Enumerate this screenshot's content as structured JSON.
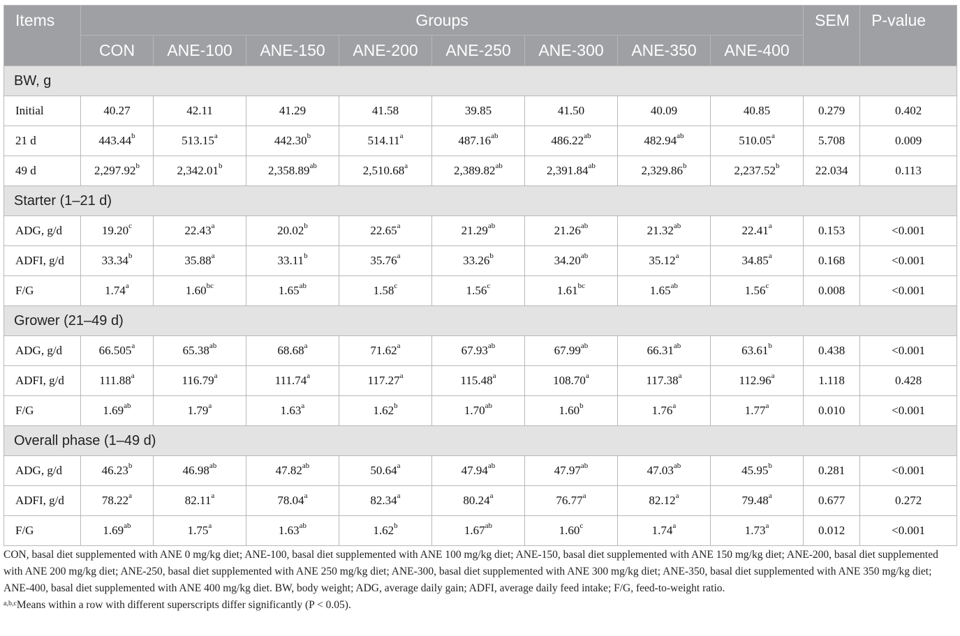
{
  "header": {
    "items": "Items",
    "groups": "Groups",
    "sem": "SEM",
    "pvalue": "P-value",
    "group_names": [
      "CON",
      "ANE-100",
      "ANE-150",
      "ANE-200",
      "ANE-250",
      "ANE-300",
      "ANE-350",
      "ANE-400"
    ]
  },
  "sections": [
    {
      "title": "BW, g",
      "rows": [
        {
          "label": "Initial",
          "values": [
            [
              "40.27",
              ""
            ],
            [
              "42.11",
              ""
            ],
            [
              "41.29",
              ""
            ],
            [
              "41.58",
              ""
            ],
            [
              "39.85",
              ""
            ],
            [
              "41.50",
              ""
            ],
            [
              "40.09",
              ""
            ],
            [
              "40.85",
              ""
            ]
          ],
          "sem": "0.279",
          "p": "0.402"
        },
        {
          "label": "21 d",
          "values": [
            [
              "443.44",
              "b"
            ],
            [
              "513.15",
              "a"
            ],
            [
              "442.30",
              "b"
            ],
            [
              "514.11",
              "a"
            ],
            [
              "487.16",
              "ab"
            ],
            [
              "486.22",
              "ab"
            ],
            [
              "482.94",
              "ab"
            ],
            [
              "510.05",
              "a"
            ]
          ],
          "sem": "5.708",
          "p": "0.009"
        },
        {
          "label": "49 d",
          "values": [
            [
              "2,297.92",
              "b"
            ],
            [
              "2,342.01",
              "b"
            ],
            [
              "2,358.89",
              "ab"
            ],
            [
              "2,510.68",
              "a"
            ],
            [
              "2,389.82",
              "ab"
            ],
            [
              "2,391.84",
              "ab"
            ],
            [
              "2,329.86",
              "b"
            ],
            [
              "2,237.52",
              "b"
            ]
          ],
          "sem": "22.034",
          "p": "0.113"
        }
      ]
    },
    {
      "title": "Starter (1–21 d)",
      "rows": [
        {
          "label": "ADG, g/d",
          "values": [
            [
              "19.20",
              "c"
            ],
            [
              "22.43",
              "a"
            ],
            [
              "20.02",
              "b"
            ],
            [
              "22.65",
              "a"
            ],
            [
              "21.29",
              "ab"
            ],
            [
              "21.26",
              "ab"
            ],
            [
              "21.32",
              "ab"
            ],
            [
              "22.41",
              "a"
            ]
          ],
          "sem": "0.153",
          "p": "<0.001"
        },
        {
          "label": "ADFI, g/d",
          "values": [
            [
              "33.34",
              "b"
            ],
            [
              "35.88",
              "a"
            ],
            [
              "33.11",
              "b"
            ],
            [
              "35.76",
              "a"
            ],
            [
              "33.26",
              "b"
            ],
            [
              "34.20",
              "ab"
            ],
            [
              "35.12",
              "a"
            ],
            [
              "34.85",
              "a"
            ]
          ],
          "sem": "0.168",
          "p": "<0.001"
        },
        {
          "label": "F/G",
          "values": [
            [
              "1.74",
              "a"
            ],
            [
              "1.60",
              "bc"
            ],
            [
              "1.65",
              "ab"
            ],
            [
              "1.58",
              "c"
            ],
            [
              "1.56",
              "c"
            ],
            [
              "1.61",
              "bc"
            ],
            [
              "1.65",
              "ab"
            ],
            [
              "1.56",
              "c"
            ]
          ],
          "sem": "0.008",
          "p": "<0.001"
        }
      ]
    },
    {
      "title": "Grower (21–49 d)",
      "rows": [
        {
          "label": "ADG, g/d",
          "values": [
            [
              "66.505",
              "a"
            ],
            [
              "65.38",
              "ab"
            ],
            [
              "68.68",
              "a"
            ],
            [
              "71.62",
              "a"
            ],
            [
              "67.93",
              "ab"
            ],
            [
              "67.99",
              "ab"
            ],
            [
              "66.31",
              "ab"
            ],
            [
              "63.61",
              "b"
            ]
          ],
          "sem": "0.438",
          "p": "<0.001"
        },
        {
          "label": "ADFI, g/d",
          "values": [
            [
              "111.88",
              "a"
            ],
            [
              "116.79",
              "a"
            ],
            [
              "111.74",
              "a"
            ],
            [
              "117.27",
              "a"
            ],
            [
              "115.48",
              "a"
            ],
            [
              "108.70",
              "a"
            ],
            [
              "117.38",
              "a"
            ],
            [
              "112.96",
              "a"
            ]
          ],
          "sem": "1.118",
          "p": "0.428"
        },
        {
          "label": "F/G",
          "values": [
            [
              "1.69",
              "ab"
            ],
            [
              "1.79",
              "a"
            ],
            [
              "1.63",
              "a"
            ],
            [
              "1.62",
              "b"
            ],
            [
              "1.70",
              "ab"
            ],
            [
              "1.60",
              "b"
            ],
            [
              "1.76",
              "a"
            ],
            [
              "1.77",
              "a"
            ]
          ],
          "sem": "0.010",
          "p": "<0.001"
        }
      ]
    },
    {
      "title": "Overall phase (1–49 d)",
      "rows": [
        {
          "label": "ADG, g/d",
          "values": [
            [
              "46.23",
              "b"
            ],
            [
              "46.98",
              "ab"
            ],
            [
              "47.82",
              "ab"
            ],
            [
              "50.64",
              "a"
            ],
            [
              "47.94",
              "ab"
            ],
            [
              "47.97",
              "ab"
            ],
            [
              "47.03",
              "ab"
            ],
            [
              "45.95",
              "b"
            ]
          ],
          "sem": "0.281",
          "p": "<0.001"
        },
        {
          "label": "ADFI, g/d",
          "values": [
            [
              "78.22",
              "a"
            ],
            [
              "82.11",
              "a"
            ],
            [
              "78.04",
              "a"
            ],
            [
              "82.34",
              "a"
            ],
            [
              "80.24",
              "a"
            ],
            [
              "76.77",
              "a"
            ],
            [
              "82.12",
              "a"
            ],
            [
              "79.48",
              "a"
            ]
          ],
          "sem": "0.677",
          "p": "0.272"
        },
        {
          "label": "F/G",
          "values": [
            [
              "1.69",
              "ab"
            ],
            [
              "1.75",
              "a"
            ],
            [
              "1.63",
              "ab"
            ],
            [
              "1.62",
              "b"
            ],
            [
              "1.67",
              "ab"
            ],
            [
              "1.60",
              "c"
            ],
            [
              "1.74",
              "a"
            ],
            [
              "1.73",
              "a"
            ]
          ],
          "sem": "0.012",
          "p": "<0.001"
        }
      ]
    }
  ],
  "footnote": {
    "abbreviations": "CON, basal diet supplemented with ANE 0 mg/kg diet; ANE-100, basal diet supplemented with ANE 100 mg/kg diet; ANE-150, basal diet supplemented with ANE 150 mg/kg diet; ANE-200, basal diet supplemented with ANE 200 mg/kg diet; ANE-250, basal diet supplemented with ANE 250 mg/kg diet; ANE-300, basal diet supplemented with ANE 300 mg/kg diet; ANE-350, basal diet supplemented with ANE 350 mg/kg diet; ANE-400, basal diet supplemented with ANE 400 mg/kg diet. BW, body weight; ADG, average daily gain; ADFI, average daily feed intake; F/G, feed-to-weight ratio.",
    "significance_marker": "a,b,c",
    "significance_text": "Means within a row with different superscripts differ significantly (P < 0.05)."
  }
}
